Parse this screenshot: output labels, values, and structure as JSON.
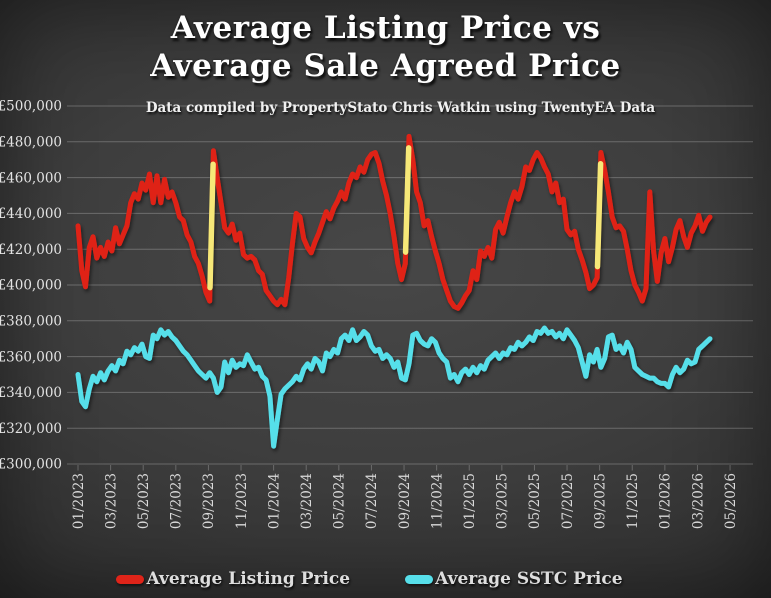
{
  "title": {
    "line1": "Average Listing Price vs",
    "line2": "Average Sale Agreed Price"
  },
  "subtitle": "Data compiled by PropertyStato Chris Watkin using TwentyEA Data",
  "legend": {
    "listing_label": "Average Listing Price",
    "sstc_label": "Average SSTC Price"
  },
  "colors": {
    "listing": "#df2419",
    "sstc": "#57dfea",
    "highlight": "#f6e878",
    "grid": "rgba(255,255,255,0.24)",
    "y_label": "#e3e3e3",
    "x_label": "#d9d9d9",
    "background_center": "#474747",
    "background_edge": "#202020"
  },
  "chart_data": {
    "type": "line",
    "title": "Average Listing Price vs Average Sale Agreed Price",
    "subtitle": "Data compiled by PropertyStato Chris Watkin using TwentyEA Data",
    "ylabel": "",
    "xlabel": "",
    "ylim": [
      300000,
      500000
    ],
    "grid": "horizontal-only",
    "legend_position": "bottom",
    "sampling": "weekly, Jan 2023 to late Mar 2026 (values estimated from plot)",
    "values_unit": "GBP thousands",
    "y_ticks": [
      500000,
      480000,
      460000,
      440000,
      420000,
      400000,
      380000,
      360000,
      340000,
      320000,
      300000
    ],
    "y_tick_labels": [
      "£500,000",
      "£480,000",
      "£460,000",
      "£440,000",
      "£420,000",
      "£400,000",
      "£380,000",
      "£360,000",
      "£340,000",
      "£320,000",
      "£300,000"
    ],
    "x_tick_labels": [
      "01/2023",
      "03/2023",
      "05/2023",
      "07/2023",
      "09/2023",
      "11/2023",
      "01/2024",
      "03/2024",
      "05/2024",
      "07/2024",
      "09/2024",
      "11/2024",
      "01/2025",
      "03/2025",
      "05/2025",
      "07/2025",
      "09/2025",
      "11/2025",
      "01/2026",
      "03/2026",
      "05/2026"
    ],
    "series": [
      {
        "name": "Average Listing Price",
        "color": "#df2419",
        "values": [
          433,
          408,
          399,
          421,
          427,
          415,
          421,
          416,
          424,
          419,
          432,
          423,
          428,
          433,
          446,
          451,
          448,
          457,
          453,
          462,
          446,
          461,
          446,
          459,
          449,
          452,
          446,
          438,
          436,
          428,
          424,
          416,
          412,
          405,
          396,
          391,
          475,
          460,
          446,
          432,
          429,
          434,
          425,
          429,
          417,
          415,
          416,
          414,
          408,
          406,
          397,
          394,
          391,
          389,
          392,
          389,
          404,
          423,
          440,
          438,
          426,
          421,
          418,
          424,
          429,
          435,
          441,
          437,
          443,
          447,
          452,
          448,
          457,
          462,
          460,
          466,
          463,
          470,
          473,
          474,
          468,
          458,
          450,
          440,
          427,
          412,
          403,
          412,
          483,
          470,
          452,
          446,
          433,
          436,
          427,
          419,
          412,
          403,
          397,
          391,
          388,
          387,
          390,
          394,
          397,
          408,
          403,
          419,
          416,
          421,
          415,
          431,
          435,
          429,
          438,
          446,
          452,
          448,
          455,
          466,
          464,
          470,
          474,
          471,
          466,
          462,
          452,
          457,
          446,
          448,
          431,
          428,
          430,
          420,
          414,
          407,
          398,
          400,
          404,
          474,
          464,
          452,
          438,
          432,
          433,
          430,
          420,
          408,
          400,
          396,
          391,
          398,
          452,
          419,
          402,
          418,
          426,
          413,
          421,
          431,
          436,
          427,
          421,
          429,
          433,
          439,
          430,
          435,
          438
        ]
      },
      {
        "name": "Average SSTC Price",
        "color": "#57dfea",
        "values": [
          350,
          335,
          332,
          342,
          349,
          346,
          351,
          347,
          352,
          355,
          352,
          358,
          356,
          363,
          361,
          365,
          363,
          367,
          360,
          359,
          372,
          370,
          375,
          372,
          374,
          371,
          369,
          366,
          363,
          361,
          358,
          355,
          352,
          350,
          348,
          351,
          348,
          340,
          343,
          357,
          351,
          358,
          354,
          356,
          355,
          361,
          357,
          353,
          354,
          349,
          347,
          338,
          310,
          325,
          339,
          342,
          344,
          346,
          349,
          347,
          353,
          356,
          353,
          359,
          357,
          352,
          362,
          360,
          364,
          362,
          370,
          372,
          369,
          375,
          369,
          371,
          374,
          372,
          366,
          363,
          364,
          359,
          361,
          359,
          354,
          357,
          348,
          347,
          356,
          372,
          373,
          369,
          367,
          366,
          370,
          368,
          362,
          359,
          357,
          348,
          350,
          346,
          351,
          353,
          350,
          354,
          351,
          355,
          353,
          358,
          360,
          362,
          359,
          362,
          361,
          365,
          364,
          368,
          366,
          368,
          371,
          369,
          374,
          373,
          376,
          373,
          374,
          371,
          373,
          370,
          375,
          372,
          369,
          365,
          357,
          349,
          361,
          357,
          364,
          354,
          359,
          371,
          372,
          364,
          366,
          362,
          368,
          364,
          354,
          352,
          350,
          349,
          348,
          348,
          346,
          345,
          345,
          343,
          350,
          354,
          351,
          353,
          358,
          356,
          357,
          364,
          366,
          368,
          370
        ]
      }
    ],
    "highlight_segments": {
      "series": "Average Listing Price",
      "color": "#f6e878",
      "description": "September surge segments highlighted in yellow",
      "point_index_pairs": [
        [
          35,
          36
        ],
        [
          87,
          88
        ],
        [
          138,
          139
        ]
      ]
    }
  }
}
